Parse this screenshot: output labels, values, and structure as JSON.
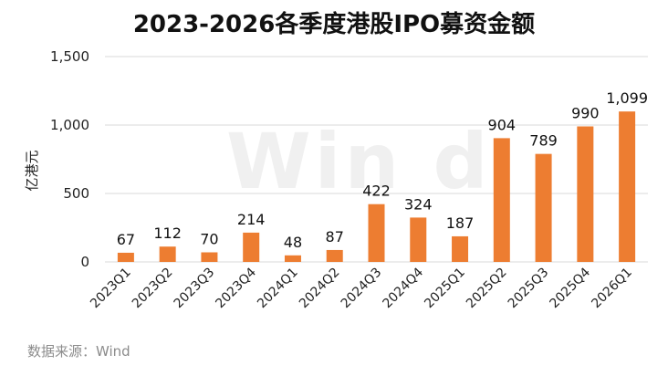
{
  "chart_data": {
    "type": "bar",
    "title": "2023-2026各季度港股IPO募资金额",
    "ylabel": "亿港元",
    "xlabel": "",
    "categories": [
      "2023Q1",
      "2023Q2",
      "2023Q3",
      "2023Q4",
      "2024Q1",
      "2024Q2",
      "2024Q3",
      "2024Q4",
      "2025Q1",
      "2025Q2",
      "2025Q3",
      "2025Q4",
      "2026Q1"
    ],
    "values": [
      67,
      112,
      70,
      214,
      48,
      87,
      422,
      324,
      187,
      904,
      789,
      990,
      1099
    ],
    "data_labels": [
      "67",
      "112",
      "70",
      "214",
      "48",
      "87",
      "422",
      "324",
      "187",
      "904",
      "789",
      "990",
      "1,099"
    ],
    "ylim": [
      0,
      1500
    ],
    "yticks": [
      0,
      500,
      1000,
      1500
    ],
    "ytick_labels": [
      "0",
      "500",
      "1,000",
      "1,500"
    ],
    "grid": true,
    "legend": "none",
    "bar_color": "#ed7d31",
    "grid_color": "#d9d9d9"
  },
  "watermark": "Win d",
  "source_note": "数据来源：Wind"
}
